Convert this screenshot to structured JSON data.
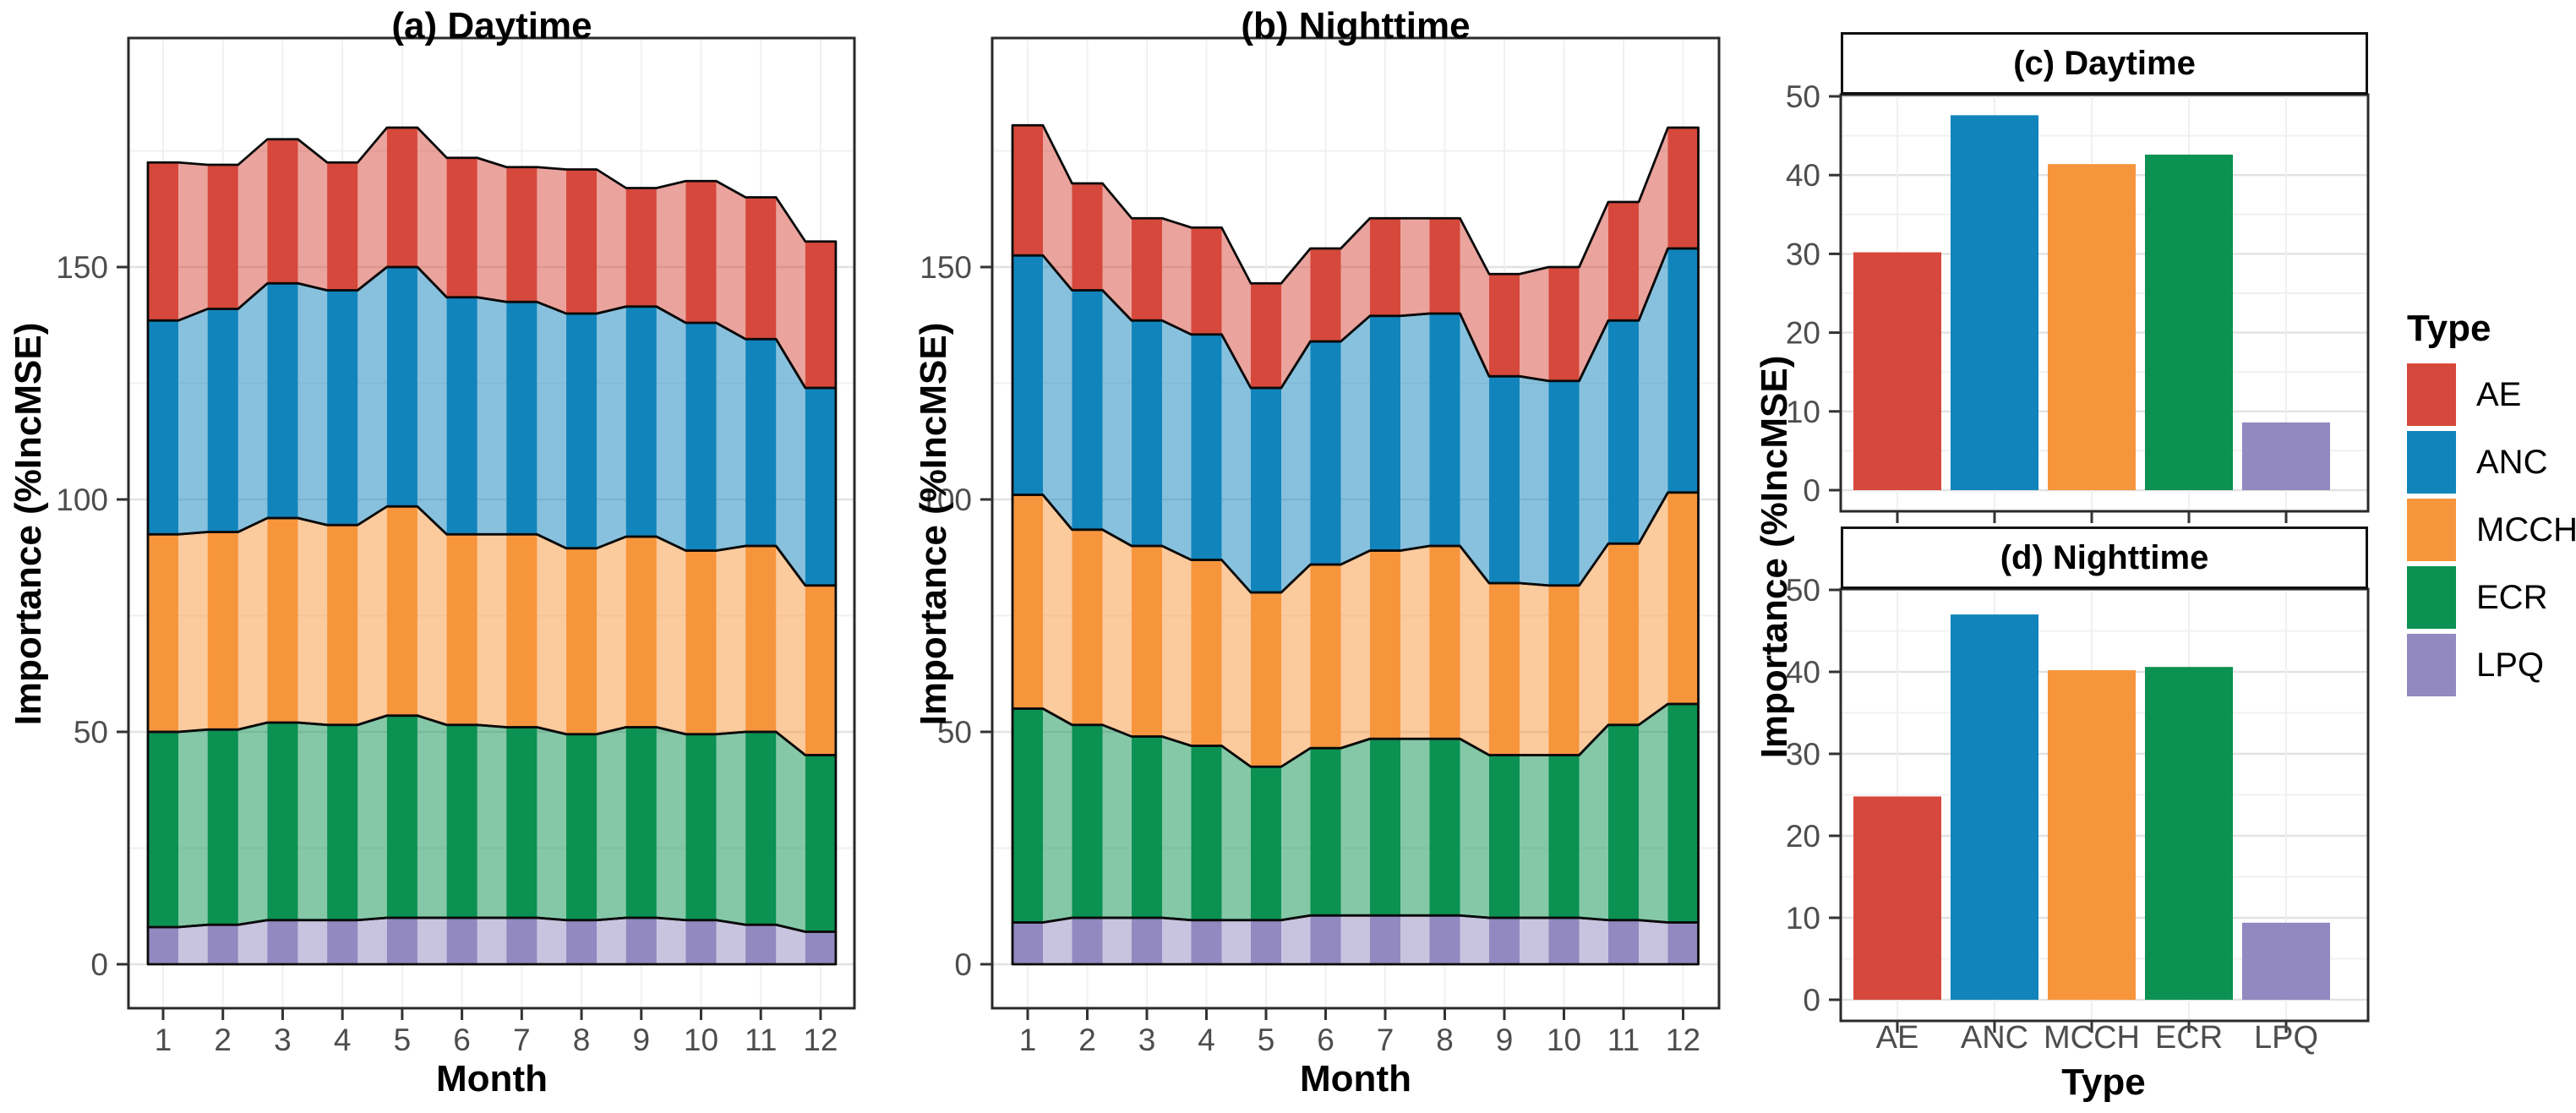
{
  "legend": {
    "title": "Type",
    "items": [
      {
        "label": "AE",
        "color": "#D6483C"
      },
      {
        "label": "ANC",
        "color": "#1184BC"
      },
      {
        "label": "MCCH",
        "color": "#F7953C"
      },
      {
        "label": "ECR",
        "color": "#0B9152"
      },
      {
        "label": "LPQ",
        "color": "#9189C0"
      }
    ]
  },
  "colors": {
    "AE": "#D6483C",
    "ANC": "#1184BC",
    "MCCH": "#F7953C",
    "ECR": "#0B9152",
    "LPQ": "#9189C0",
    "grid_major": "#E2E2E2",
    "grid_minor": "#F0F0F0",
    "panel_border": "#2A2A2A",
    "outline": "#0A0A0A",
    "tick_text": "#4D4D4D"
  },
  "chart_data": [
    {
      "type": "area",
      "title": "(a) Daytime",
      "xlabel": "Month",
      "ylabel": "Importance (%IncMSE)",
      "x_tick_labels": [
        "1",
        "2",
        "3",
        "4",
        "5",
        "6",
        "7",
        "8",
        "9",
        "10",
        "11",
        "12"
      ],
      "y_ticks": [
        0,
        50,
        100,
        150
      ],
      "y_minor_ticks": [
        25,
        75,
        125,
        175
      ],
      "ylim": [
        0,
        199
      ],
      "legend_position": "right",
      "grid": true,
      "stack_order_bottom_to_top": [
        "LPQ",
        "ECR",
        "MCCH",
        "ANC",
        "AE"
      ],
      "series": [
        {
          "name": "LPQ",
          "values": [
            8,
            8.5,
            9.5,
            9.5,
            10,
            10,
            10,
            9.5,
            10,
            9.5,
            8.5,
            7
          ]
        },
        {
          "name": "ECR",
          "values": [
            42,
            42,
            42.5,
            42,
            43.5,
            41.5,
            41,
            40,
            41,
            40,
            41.5,
            38
          ]
        },
        {
          "name": "MCCH",
          "values": [
            42.5,
            42.5,
            44,
            43,
            45,
            41,
            41.5,
            40,
            41,
            39.5,
            40,
            36.5
          ]
        },
        {
          "name": "ANC",
          "values": [
            46,
            48,
            50.5,
            50.5,
            51.5,
            51,
            50,
            50.5,
            49.5,
            49,
            44.5,
            42.5
          ]
        },
        {
          "name": "AE",
          "values": [
            34,
            31,
            31,
            27.5,
            30,
            30,
            29,
            31,
            25.5,
            30.5,
            30.5,
            31.5
          ]
        }
      ]
    },
    {
      "type": "area",
      "title": "(b) Nighttime",
      "xlabel": "Month",
      "ylabel": "Importance (%IncMSE)",
      "x_tick_labels": [
        "1",
        "2",
        "3",
        "4",
        "5",
        "6",
        "7",
        "8",
        "9",
        "10",
        "11",
        "12"
      ],
      "y_ticks": [
        0,
        50,
        100,
        150
      ],
      "y_minor_ticks": [
        25,
        75,
        125,
        175
      ],
      "ylim": [
        0,
        199
      ],
      "grid": true,
      "stack_order_bottom_to_top": [
        "LPQ",
        "ECR",
        "MCCH",
        "ANC",
        "AE"
      ],
      "series": [
        {
          "name": "LPQ",
          "values": [
            9,
            10,
            10,
            9.5,
            9.5,
            10.5,
            10.5,
            10.5,
            10,
            10,
            9.5,
            9
          ]
        },
        {
          "name": "ECR",
          "values": [
            46,
            41.5,
            39,
            37.5,
            33,
            36,
            38,
            38,
            35,
            35,
            42,
            47
          ]
        },
        {
          "name": "MCCH",
          "values": [
            46,
            42,
            41,
            40,
            37.5,
            39.5,
            40.5,
            41.5,
            37,
            36.5,
            39,
            45.5
          ]
        },
        {
          "name": "ANC",
          "values": [
            51.5,
            51.5,
            48.5,
            48.5,
            44,
            48,
            50.5,
            50,
            44.5,
            44,
            48,
            52.5
          ]
        },
        {
          "name": "AE",
          "values": [
            28,
            23,
            22,
            23,
            22.5,
            20,
            21,
            20.5,
            22,
            24.5,
            25.5,
            26
          ]
        }
      ]
    },
    {
      "type": "bar",
      "title": "(c) Daytime",
      "xlabel": "",
      "ylabel": "Importance (%IncMSE)",
      "categories": [
        "AE",
        "ANC",
        "MCCH",
        "ECR",
        "LPQ"
      ],
      "values": [
        30.2,
        47.6,
        41.4,
        42.6,
        8.6
      ],
      "y_ticks": [
        0,
        10,
        20,
        30,
        40,
        50
      ],
      "y_minor_ticks": [
        5,
        15,
        25,
        35,
        45
      ],
      "ylim": [
        0,
        52
      ],
      "grid": true,
      "show_x_labels": false
    },
    {
      "type": "bar",
      "title": "(d) Nighttime",
      "xlabel": "Type",
      "ylabel": "Importance (%IncMSE)",
      "categories": [
        "AE",
        "ANC",
        "MCCH",
        "ECR",
        "LPQ"
      ],
      "values": [
        24.8,
        47,
        40.2,
        40.6,
        9.4
      ],
      "y_ticks": [
        0,
        10,
        20,
        30,
        40,
        50
      ],
      "y_minor_ticks": [
        5,
        15,
        25,
        35,
        45
      ],
      "ylim": [
        0,
        49.6
      ],
      "grid": true,
      "show_x_labels": true
    }
  ]
}
